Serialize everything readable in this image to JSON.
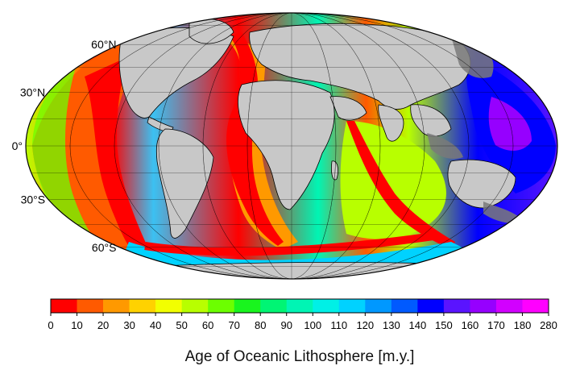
{
  "map": {
    "projection": "mollweide",
    "title": "",
    "ocean_gradient_note": "",
    "continent_color": "#c8c8c8",
    "shelf_color": "#7a7a7a",
    "ocean_base_color": "#3bc1f2",
    "latitude_labels": [
      "60°N",
      "30°N",
      "0°",
      "30°S",
      "60°S"
    ],
    "labeled_latitudes_deg": [
      60,
      30,
      0,
      -30,
      -60
    ]
  },
  "legend": {
    "title": "Age of Oceanic Lithosphere [m.y.]",
    "tick_labels": [
      "0",
      "10",
      "20",
      "30",
      "40",
      "50",
      "60",
      "70",
      "80",
      "90",
      "100",
      "110",
      "120",
      "130",
      "140",
      "150",
      "160",
      "170",
      "180",
      "280"
    ],
    "bins": [
      {
        "from": 0,
        "to": 10,
        "color": "#ff0000"
      },
      {
        "from": 10,
        "to": 20,
        "color": "#ff5a00"
      },
      {
        "from": 20,
        "to": 30,
        "color": "#ff9900"
      },
      {
        "from": 30,
        "to": 40,
        "color": "#ffd200"
      },
      {
        "from": 40,
        "to": 50,
        "color": "#f2ff00"
      },
      {
        "from": 50,
        "to": 60,
        "color": "#b8ff00"
      },
      {
        "from": 60,
        "to": 70,
        "color": "#6cff00"
      },
      {
        "from": 70,
        "to": 80,
        "color": "#19f51e"
      },
      {
        "from": 80,
        "to": 90,
        "color": "#00f574"
      },
      {
        "from": 90,
        "to": 100,
        "color": "#00f5b4"
      },
      {
        "from": 100,
        "to": 110,
        "color": "#00f0e6"
      },
      {
        "from": 110,
        "to": 120,
        "color": "#00d2ff"
      },
      {
        "from": 120,
        "to": 130,
        "color": "#0098ff"
      },
      {
        "from": 130,
        "to": 140,
        "color": "#005aff"
      },
      {
        "from": 140,
        "to": 150,
        "color": "#0000ff"
      },
      {
        "from": 150,
        "to": 160,
        "color": "#5a14ff"
      },
      {
        "from": 160,
        "to": 170,
        "color": "#9600ff"
      },
      {
        "from": 170,
        "to": 180,
        "color": "#d200ff"
      },
      {
        "from": 180,
        "to": 280,
        "color": "#ff00ff"
      }
    ]
  }
}
